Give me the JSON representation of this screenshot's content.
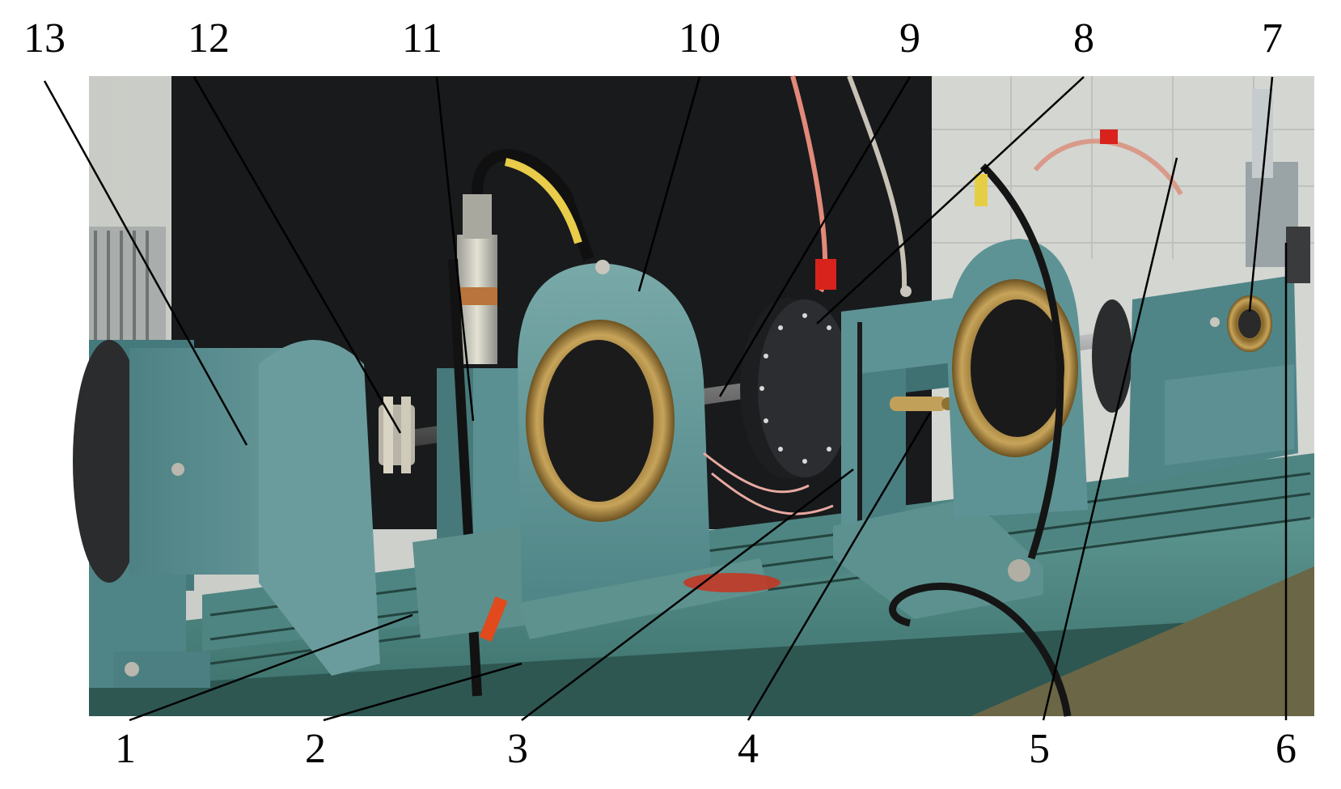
{
  "figure": {
    "top_labels": [
      "13",
      "12",
      "11",
      "10",
      "9",
      "8",
      "7"
    ],
    "bottom_labels": [
      "1",
      "2",
      "3",
      "4",
      "5",
      "6"
    ]
  }
}
